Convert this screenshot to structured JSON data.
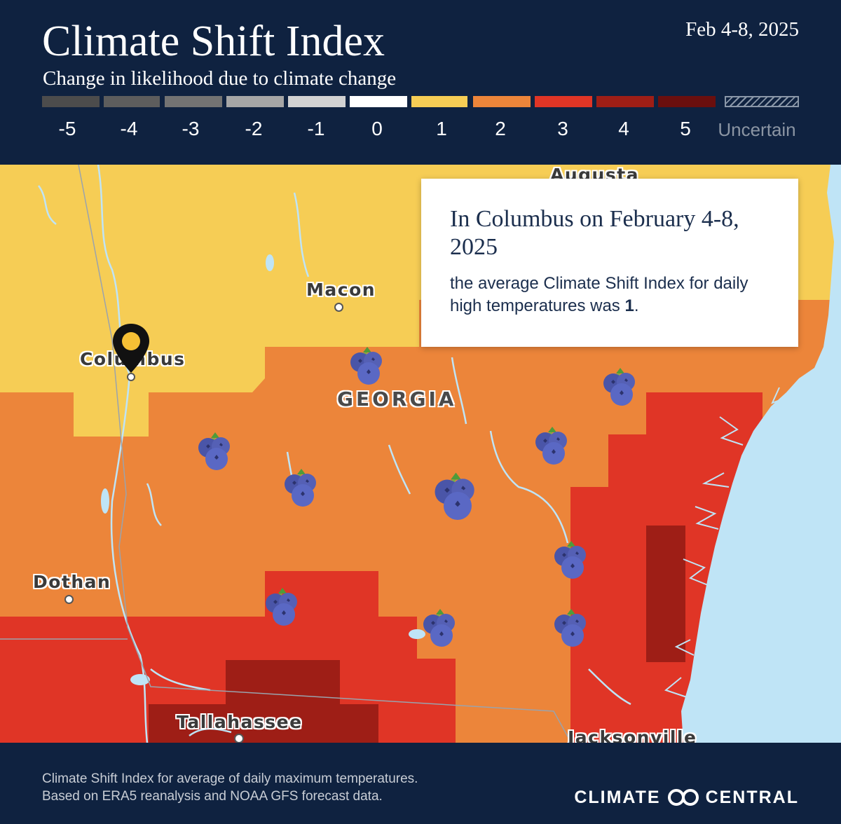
{
  "header": {
    "title": "Climate Shift Index",
    "subtitle": "Change in likelihood due to climate change",
    "date": "Feb 4-8, 2025"
  },
  "legend": [
    {
      "label": "-5",
      "color": "#4c4c4c"
    },
    {
      "label": "-4",
      "color": "#5d5d5d"
    },
    {
      "label": "-3",
      "color": "#737373"
    },
    {
      "label": "-2",
      "color": "#a6a6a6"
    },
    {
      "label": "-1",
      "color": "#d2d2d2"
    },
    {
      "label": "0",
      "color": "#ffffff"
    },
    {
      "label": "1",
      "color": "#f6cd55"
    },
    {
      "label": "2",
      "color": "#ec853a"
    },
    {
      "label": "3",
      "color": "#e03526"
    },
    {
      "label": "4",
      "color": "#9e1e16"
    },
    {
      "label": "5",
      "color": "#6a0f0e"
    },
    {
      "label": "Uncertain",
      "color": "#8a97a8",
      "pattern": "hatched"
    }
  ],
  "map": {
    "state_label": "GEORGIA",
    "cities": {
      "augusta": "Augusta",
      "macon": "Macon",
      "columbus": "Columbus",
      "dothan": "Dothan",
      "tallahassee": "Tallahassee",
      "jacksonville": "Jacksonville"
    },
    "marker_icon": "map-pin-icon",
    "crop_icon": "blueberry-icon",
    "water_color": "#bfe4f6"
  },
  "callout": {
    "heading": "In Columbus on February 4-8, 2025",
    "body_prefix": "the average Climate Shift Index for daily high temperatures was ",
    "value": "1",
    "body_suffix": "."
  },
  "footer": {
    "note_line1": "Climate Shift Index for average of daily maximum temperatures.",
    "note_line2": "Based on ERA5 reanalysis and NOAA GFS forecast data.",
    "logo_left": "CLIMATE",
    "logo_right": "CENTRAL"
  }
}
